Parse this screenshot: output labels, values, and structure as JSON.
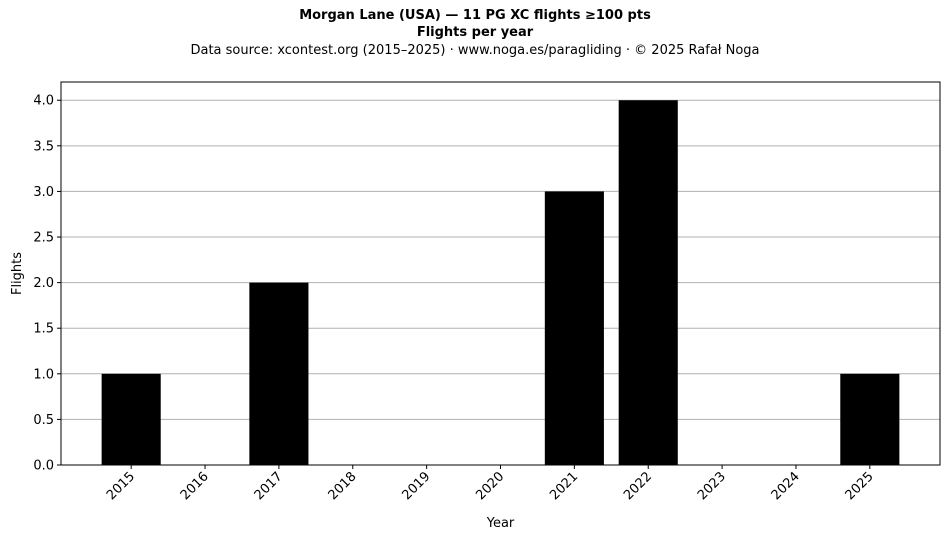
{
  "chart_data": {
    "type": "bar",
    "title": "Morgan Lane (USA)  —  11 PG XC flights ≥100 pts",
    "subtitle": "Flights per year",
    "source": "Data source: xcontest.org (2015–2025)  ·  www.noga.es/paragliding  ·  © 2025 Rafał Noga",
    "xlabel": "Year",
    "ylabel": "Flights",
    "categories": [
      "2015",
      "2016",
      "2017",
      "2018",
      "2019",
      "2020",
      "2021",
      "2022",
      "2023",
      "2024",
      "2025"
    ],
    "values": [
      1,
      0,
      2,
      0,
      0,
      0,
      3,
      4,
      0,
      0,
      1
    ],
    "ylim": [
      0,
      4.2
    ],
    "yticks": [
      "0.0",
      "0.5",
      "1.0",
      "1.5",
      "2.0",
      "2.5",
      "3.0",
      "3.5",
      "4.0"
    ],
    "grid": "y",
    "bar_color": "#000000",
    "grid_color": "#b0b0b0"
  }
}
